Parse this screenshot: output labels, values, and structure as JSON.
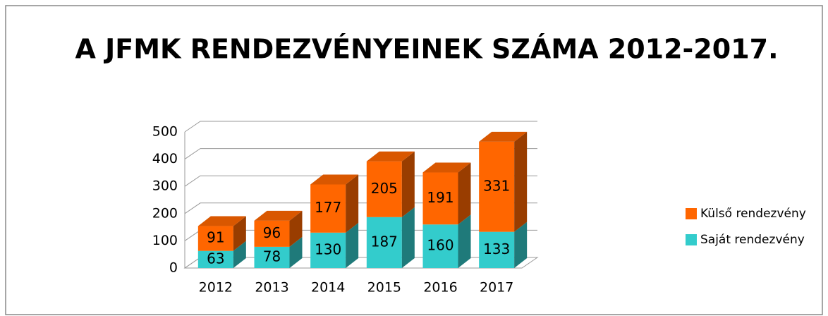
{
  "chart_data": {
    "type": "bar3d_stacked",
    "title": "A JFMK RENDEZVÉNYEINEK SZÁMA 2012-2017.",
    "categories": [
      "2012",
      "2013",
      "2014",
      "2015",
      "2016",
      "2017"
    ],
    "series": [
      {
        "name": "Saját rendezvény",
        "color": "#33cccc",
        "values": [
          63,
          78,
          130,
          187,
          160,
          133
        ]
      },
      {
        "name": "Külső rendezvény",
        "color": "#ff6600",
        "values": [
          91,
          96,
          177,
          205,
          191,
          331
        ]
      }
    ],
    "ylim": [
      0,
      500
    ],
    "yticks": [
      0,
      100,
      200,
      300,
      400,
      500
    ],
    "grid": true,
    "legend": "right"
  }
}
